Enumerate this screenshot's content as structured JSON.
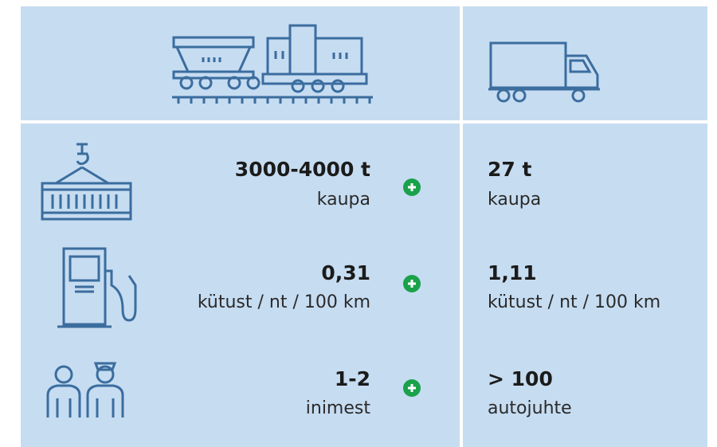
{
  "rows": [
    {
      "rail": {
        "value": "3000-4000 t",
        "unit": "kaupa"
      },
      "road": {
        "value": "27 t",
        "unit": "kaupa"
      }
    },
    {
      "rail": {
        "value": "0,31",
        "unit": "kütust / nt / 100 km"
      },
      "road": {
        "value": "1,11",
        "unit": "kütust / nt / 100 km"
      }
    },
    {
      "rail": {
        "value": "1-2",
        "unit": "inimest"
      },
      "road": {
        "value": "> 100",
        "unit": "autojuhte"
      }
    }
  ]
}
